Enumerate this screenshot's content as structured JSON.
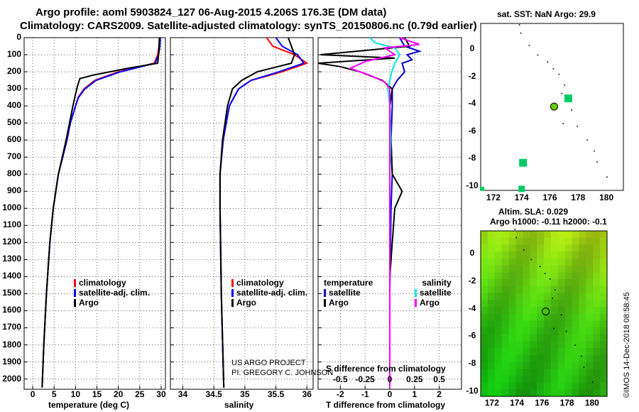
{
  "header": {
    "line1": "Argo profile: aoml 5903824_127 06-Aug-2015 4.206S 176.3E (DM data)",
    "line2": "Climatology: CARS2009. Satellite-adjusted climatology: synTS_20150806.nc (0.79d earlier)"
  },
  "colors": {
    "climatology": "#ff0000",
    "satellite": "#0000ff",
    "argo": "#000000",
    "sat_t_diff": "#0000cc",
    "sat_s_diff": "#00e5e5",
    "argo_s_diff": "#ff00ff",
    "marker": "#00cc66",
    "profile_dot": "#66cc00"
  },
  "pressure_ticks": [
    "0",
    "100",
    "200",
    "300",
    "400",
    "500",
    "600",
    "700",
    "800",
    "900",
    "1000",
    "1100",
    "1200",
    "1300",
    "1400",
    "1500",
    "1600",
    "1700",
    "1800",
    "1900",
    "2000"
  ],
  "chart_data": [
    {
      "type": "line",
      "name": "temperature",
      "xlabel": "temperature (deg C)",
      "xticks": [
        "0",
        "5",
        "10",
        "15",
        "20",
        "25",
        "30"
      ],
      "xlim": [
        -2,
        31
      ],
      "ylim": [
        2060,
        0
      ],
      "legend": [
        "climatology",
        "satellite-adj. clim.",
        "Argo"
      ],
      "series": [
        {
          "name": "climatology",
          "p": [
            0,
            50,
            100,
            150,
            200,
            250,
            300,
            350,
            400,
            500,
            600,
            700,
            800,
            1000,
            1200,
            1500,
            1800,
            2050
          ],
          "v": [
            29.6,
            29.5,
            29.2,
            28.4,
            20.0,
            14.5,
            12.0,
            10.6,
            10.0,
            8.8,
            8.0,
            7.0,
            6.0,
            4.8,
            4.0,
            3.2,
            2.6,
            2.2
          ]
        },
        {
          "name": "satellite-adj. clim.",
          "p": [
            0,
            50,
            100,
            150,
            200,
            250,
            300,
            350,
            400,
            500,
            600,
            700,
            800,
            1000,
            1200,
            1500,
            1800,
            2050
          ],
          "v": [
            29.8,
            29.7,
            29.4,
            28.6,
            20.5,
            14.8,
            12.2,
            10.7,
            10.0,
            8.8,
            8.0,
            7.0,
            6.0,
            4.8,
            4.0,
            3.2,
            2.6,
            2.2
          ]
        },
        {
          "name": "Argo",
          "p": [
            0,
            50,
            100,
            150,
            180,
            220,
            240,
            280,
            330,
            400,
            500,
            600,
            700,
            800,
            1000,
            1200,
            1500,
            1800,
            2050
          ],
          "v": [
            29.6,
            29.5,
            29.4,
            29.2,
            22.0,
            14.0,
            11.0,
            10.5,
            10.0,
            9.4,
            8.6,
            7.8,
            6.9,
            6.0,
            4.8,
            4.0,
            3.2,
            2.6,
            2.2
          ]
        }
      ]
    },
    {
      "type": "line",
      "name": "salinity",
      "xlabel": "salinity",
      "xticks": [
        "34",
        "34.5",
        "35",
        "35.5",
        "36"
      ],
      "xlim": [
        33.8,
        36.1
      ],
      "ylim": [
        2060,
        0
      ],
      "legend": [
        "climatology",
        "satellite-adj. clim.",
        "Argo"
      ],
      "annotation": [
        "US ARGO PROJECT",
        "PI: GREGORY C. JOHNSON"
      ],
      "series": [
        {
          "name": "climatology",
          "p": [
            0,
            50,
            100,
            150,
            200,
            250,
            300,
            400,
            500,
            600,
            800,
            1000,
            1500,
            2050
          ],
          "v": [
            35.35,
            35.45,
            35.8,
            36.0,
            35.6,
            35.1,
            34.9,
            34.75,
            34.7,
            34.65,
            34.6,
            34.6,
            34.62,
            34.66
          ]
        },
        {
          "name": "satellite-adj. clim.",
          "p": [
            0,
            50,
            100,
            150,
            200,
            250,
            300,
            400,
            500,
            600,
            800,
            1000,
            1500,
            2050
          ],
          "v": [
            35.5,
            35.6,
            35.85,
            35.95,
            35.55,
            35.1,
            34.9,
            34.75,
            34.7,
            34.65,
            34.6,
            34.6,
            34.62,
            34.66
          ]
        },
        {
          "name": "Argo",
          "p": [
            0,
            50,
            100,
            150,
            200,
            250,
            300,
            400,
            500,
            600,
            800,
            1000,
            1500,
            2050
          ],
          "v": [
            35.7,
            35.75,
            35.8,
            35.75,
            35.2,
            34.95,
            34.8,
            34.72,
            34.68,
            34.64,
            34.6,
            34.6,
            34.62,
            34.66
          ]
        }
      ]
    },
    {
      "type": "line",
      "name": "difference",
      "xlabel": "T difference from climatology",
      "xlabel_top": "S difference from climatology",
      "xticks_bottom": [
        "-2",
        "-1",
        "0",
        "1",
        "2"
      ],
      "xticks_top": [
        "-0.5",
        "-0.25",
        "0",
        "0.25",
        "0.5"
      ],
      "xlim": [
        -2.9,
        2.9
      ],
      "ylim": [
        2060,
        0
      ],
      "legend_left": [
        "temperature",
        "satellite",
        "Argo"
      ],
      "legend_right": [
        "salinity",
        "satellite",
        "Argo"
      ],
      "series": [
        {
          "name": "temperature satellite",
          "p": [
            0,
            50,
            80,
            100,
            130,
            150,
            200,
            250,
            300,
            400,
            600,
            800,
            1000,
            1500,
            2050
          ],
          "v": [
            0.4,
            0.6,
            1.2,
            0.7,
            0.9,
            0.5,
            0.6,
            0.3,
            0.1,
            0.1,
            0.05,
            0.1,
            0.05,
            0.0,
            0.0
          ]
        },
        {
          "name": "temperature Argo",
          "p": [
            0,
            50,
            100,
            120,
            150,
            170,
            200,
            250,
            300,
            400,
            600,
            800,
            850,
            900,
            1000,
            1200,
            1400,
            2050
          ],
          "v": [
            0.6,
            0.8,
            -2.8,
            0.2,
            -3.0,
            -2.0,
            -1.2,
            -0.3,
            0.1,
            0.0,
            0.05,
            0.1,
            0.3,
            0.5,
            0.2,
            0.1,
            0.0,
            0.0
          ]
        },
        {
          "name": "salinity satellite",
          "p": [
            0,
            30,
            60,
            100,
            150,
            200,
            250,
            300,
            400,
            600,
            800,
            1000,
            1500,
            2050
          ],
          "v": [
            -0.2,
            -0.15,
            0.05,
            0.1,
            0.05,
            0.02,
            0.0,
            -0.02,
            0.0,
            0.01,
            0.0,
            0.0,
            0.0,
            0.0
          ]
        },
        {
          "name": "salinity Argo",
          "p": [
            0,
            40,
            60,
            100,
            140,
            180,
            220,
            260,
            300,
            400,
            2050
          ],
          "v": [
            0.1,
            0.3,
            -0.05,
            0.05,
            -0.25,
            -0.4,
            -0.2,
            -0.05,
            0.0,
            0.0,
            0.0
          ]
        }
      ]
    }
  ],
  "maps": {
    "sst": {
      "title": "sat. SST: NaN Argo: 29.9",
      "xticks": [
        "172",
        "174",
        "176",
        "178",
        "180"
      ],
      "yticks": [
        "0",
        "-2",
        "-4",
        "-6",
        "-8",
        "-10"
      ]
    },
    "sla": {
      "title1": "Altim. SLA: 0.029",
      "title2": "Argo h1000: -0.11 h2000: -0.1",
      "xticks": [
        "172",
        "174",
        "176",
        "178",
        "180"
      ],
      "yticks": [
        "0",
        "-2",
        "-4",
        "-6",
        "-8",
        "-10"
      ]
    }
  },
  "footer": {
    "stamp": "©IMOS 14-Dec-2018 08:58:45"
  }
}
